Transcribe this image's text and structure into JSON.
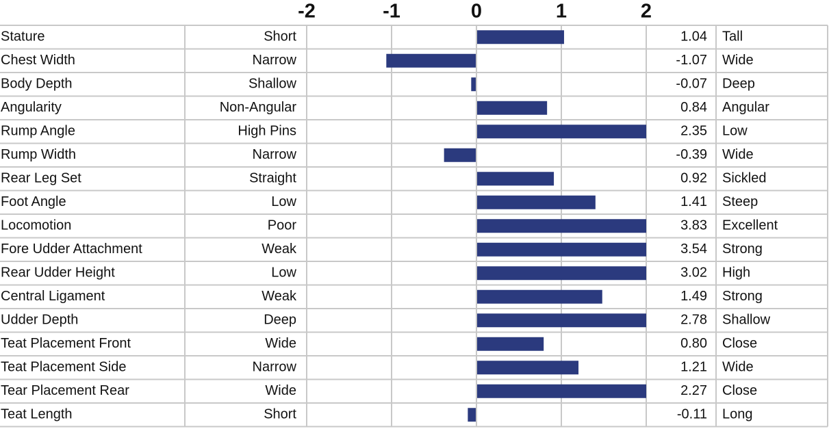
{
  "chart_data": {
    "type": "bar",
    "orientation": "horizontal",
    "categories": [
      "Stature",
      "Chest Width",
      "Body Depth",
      "Angularity",
      "Rump Angle",
      "Rump Width",
      "Rear Leg Set",
      "Foot Angle",
      "Locomotion",
      "Fore Udder Attachment",
      "Rear Udder Height",
      "Central Ligament",
      "Udder Depth",
      "Teat Placement Front",
      "Teat Placement Side",
      "Tear Placement Rear",
      "Teat Length"
    ],
    "low_labels": [
      "Short",
      "Narrow",
      "Shallow",
      "Non-Angular",
      "High Pins",
      "Narrow",
      "Straight",
      "Low",
      "Poor",
      "Weak",
      "Low",
      "Weak",
      "Deep",
      "Wide",
      "Narrow",
      "Wide",
      "Short"
    ],
    "high_labels": [
      "Tall",
      "Wide",
      "Deep",
      "Angular",
      "Low",
      "Wide",
      "Sickled",
      "Steep",
      "Excellent",
      "Strong",
      "High",
      "Strong",
      "Shallow",
      "Close",
      "Wide",
      "Close",
      "Long"
    ],
    "values": [
      1.04,
      -1.07,
      -0.07,
      0.84,
      2.35,
      -0.39,
      0.92,
      1.41,
      3.83,
      3.54,
      3.02,
      1.49,
      2.78,
      0.8,
      1.21,
      2.27,
      -0.11
    ],
    "value_labels": [
      "1.04",
      "-1.07",
      "-0.07",
      "0.84",
      "2.35",
      "-0.39",
      "0.92",
      "1.41",
      "3.83",
      "3.54",
      "3.02",
      "1.49",
      "2.78",
      "0.80",
      "1.21",
      "2.27",
      "-0.11"
    ],
    "color": "#2b3a7e",
    "xlim": [
      -2,
      2
    ],
    "xticks": [
      -2,
      -1,
      0,
      1,
      2
    ],
    "grid": true
  }
}
